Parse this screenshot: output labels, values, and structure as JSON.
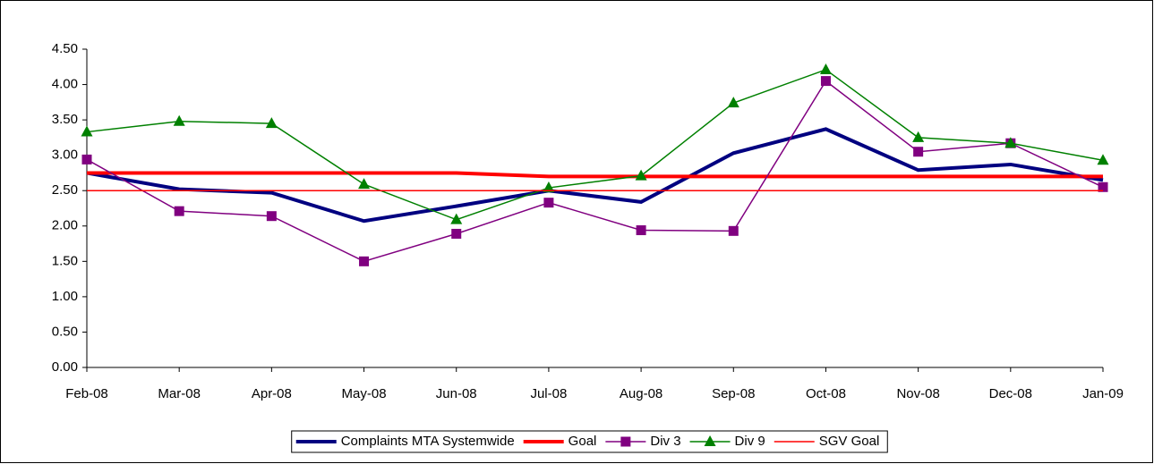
{
  "chart_data": {
    "type": "line",
    "categories": [
      "Feb-08",
      "Mar-08",
      "Apr-08",
      "May-08",
      "Jun-08",
      "Jul-08",
      "Aug-08",
      "Sep-08",
      "Oct-08",
      "Nov-08",
      "Dec-08",
      "Jan-09"
    ],
    "series": [
      {
        "name": "Complaints MTA Systemwide",
        "color": "#000080",
        "values": [
          2.75,
          2.52,
          2.47,
          2.07,
          2.28,
          2.5,
          2.34,
          3.03,
          3.37,
          2.79,
          2.87,
          2.65
        ]
      },
      {
        "name": "Goal",
        "color": "#ff0000",
        "values": [
          2.75,
          2.75,
          2.75,
          2.75,
          2.75,
          2.7,
          2.7,
          2.7,
          2.7,
          2.7,
          2.7,
          2.7
        ]
      },
      {
        "name": "Div 3",
        "color": "#800080",
        "marker": "square",
        "values": [
          2.94,
          2.21,
          2.14,
          1.5,
          1.89,
          2.33,
          1.94,
          1.93,
          4.05,
          3.05,
          3.17,
          2.55
        ]
      },
      {
        "name": "Div 9",
        "color": "#008000",
        "marker": "triangle",
        "values": [
          3.33,
          3.48,
          3.45,
          2.59,
          2.09,
          2.54,
          2.71,
          3.74,
          4.21,
          3.25,
          3.17,
          2.93
        ]
      },
      {
        "name": "SGV Goal",
        "color": "#ff0000",
        "values": [
          2.5,
          2.5,
          2.5,
          2.5,
          2.5,
          2.5,
          2.5,
          2.5,
          2.5,
          2.5,
          2.5,
          2.5
        ]
      }
    ],
    "ylim": [
      0,
      4.5
    ],
    "yticks": [
      {
        "value": 0,
        "label": "0.00"
      },
      {
        "value": 0.5,
        "label": "0.50"
      },
      {
        "value": 1,
        "label": "1.00"
      },
      {
        "value": 1.5,
        "label": "1.50"
      },
      {
        "value": 2,
        "label": "2.00"
      },
      {
        "value": 2.5,
        "label": "2.50"
      },
      {
        "value": 3,
        "label": "3.00"
      },
      {
        "value": 3.5,
        "label": "3.50"
      },
      {
        "value": 4,
        "label": "4.00"
      },
      {
        "value": 4.5,
        "label": "4.50"
      }
    ],
    "legend": "bottom"
  }
}
